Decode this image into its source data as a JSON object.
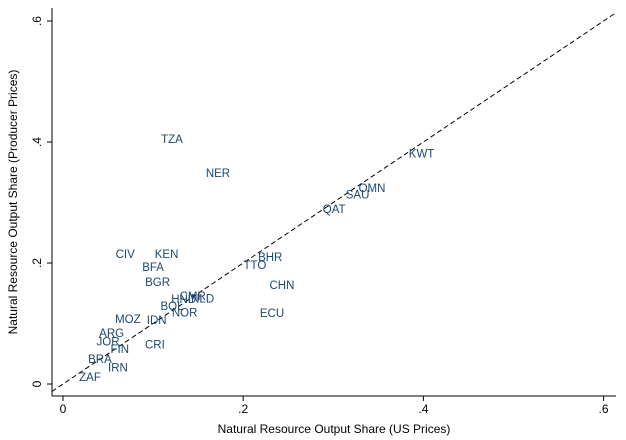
{
  "chart_data": {
    "type": "scatter",
    "x_label": "Natural Resource Output Share (US Prices)",
    "y_label": "Natural Resource Output Share (Producer Prices)",
    "color": "#1a476f",
    "diagonal": true,
    "xlim": [
      -0.0122,
      0.6138
    ],
    "ylim": [
      -0.0198,
      0.6215
    ],
    "xticks": [
      0,
      {
        "value": 0.2,
        "label": ".2"
      },
      {
        "value": 0.4,
        "label": ".4"
      },
      {
        "value": 0.6,
        "label": ".6"
      }
    ],
    "yticks": [
      0,
      {
        "value": 0.2,
        "label": ".2"
      },
      {
        "value": 0.4,
        "label": ".4"
      },
      {
        "value": 0.6,
        "label": ".6"
      }
    ],
    "labels": [
      "TZA",
      "NER",
      "KWT",
      "OMN",
      "SAU",
      "QAT",
      "BHR",
      "TTO",
      "CHN",
      "ECU",
      "CIV",
      "KEN",
      "BFA",
      "BGR",
      "HND",
      "CMR",
      "NLD",
      "BOL",
      "NOR",
      "MOZ",
      "IDN",
      "ARG",
      "JOR",
      "CRI",
      "FIN",
      "BRA",
      "IRN",
      "ZAF"
    ],
    "x": [
      0.121,
      0.172,
      0.398,
      0.343,
      0.327,
      0.301,
      0.23,
      0.213,
      0.243,
      0.232,
      0.069,
      0.115,
      0.1,
      0.105,
      0.134,
      0.144,
      0.155,
      0.121,
      0.135,
      0.072,
      0.104,
      0.054,
      0.05,
      0.102,
      0.063,
      0.041,
      0.061,
      0.03
    ],
    "y": [
      0.403,
      0.347,
      0.379,
      0.322,
      0.312,
      0.288,
      0.208,
      0.195,
      0.162,
      0.116,
      0.213,
      0.213,
      0.192,
      0.167,
      0.139,
      0.144,
      0.14,
      0.127,
      0.117,
      0.106,
      0.104,
      0.083,
      0.069,
      0.064,
      0.056,
      0.04,
      0.026,
      0.01
    ]
  }
}
